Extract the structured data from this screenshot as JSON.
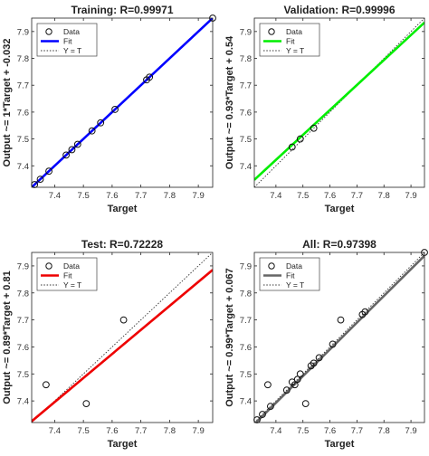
{
  "chart_data": [
    {
      "type": "scatter",
      "title": "Training: R=0.99971",
      "xlabel": "Target",
      "ylabel": "Output ~= 1*Target + -0.032",
      "xlim": [
        7.32,
        7.95
      ],
      "ylim": [
        7.32,
        7.95
      ],
      "xticks": [
        "7.4",
        "7.5",
        "7.6",
        "7.7",
        "7.8",
        "7.9"
      ],
      "yticks": [
        "7.4",
        "7.5",
        "7.6",
        "7.7",
        "7.8",
        "7.9"
      ],
      "fit": {
        "slope": 1.0,
        "intercept": -0.0,
        "color": "#0000ff"
      },
      "series": [
        {
          "name": "Data",
          "x": [
            7.33,
            7.35,
            7.38,
            7.44,
            7.46,
            7.48,
            7.53,
            7.56,
            7.61,
            7.72,
            7.73,
            7.95
          ],
          "y": [
            7.33,
            7.35,
            7.38,
            7.44,
            7.46,
            7.48,
            7.53,
            7.56,
            7.61,
            7.72,
            7.73,
            7.95
          ]
        }
      ],
      "legend": [
        "Data",
        "Fit",
        "Y = T"
      ],
      "legend_position": "top-left",
      "grid": false
    },
    {
      "type": "scatter",
      "title": "Validation: R=0.99996",
      "xlabel": "Target",
      "ylabel": "Output ~= 0.93*Target + 0.54",
      "xlim": [
        7.32,
        7.95
      ],
      "ylim": [
        7.32,
        7.95
      ],
      "xticks": [
        "7.4",
        "7.5",
        "7.6",
        "7.7",
        "7.8",
        "7.9"
      ],
      "yticks": [
        "7.4",
        "7.5",
        "7.6",
        "7.7",
        "7.8",
        "7.9"
      ],
      "fit": {
        "slope": 0.93,
        "intercept": 0.54,
        "color": "#00ee00"
      },
      "series": [
        {
          "name": "Data",
          "x": [
            7.46,
            7.49,
            7.54
          ],
          "y": [
            7.47,
            7.5,
            7.54
          ]
        }
      ],
      "legend": [
        "Data",
        "Fit",
        "Y = T"
      ],
      "legend_position": "top-left",
      "grid": false
    },
    {
      "type": "scatter",
      "title": "Test: R=0.72228",
      "xlabel": "Target",
      "ylabel": "Output ~= 0.89*Target + 0.81",
      "xlim": [
        7.32,
        7.95
      ],
      "ylim": [
        7.32,
        7.95
      ],
      "xticks": [
        "7.4",
        "7.5",
        "7.6",
        "7.7",
        "7.8",
        "7.9"
      ],
      "yticks": [
        "7.4",
        "7.5",
        "7.6",
        "7.7",
        "7.8",
        "7.9"
      ],
      "fit": {
        "slope": 0.89,
        "intercept": 0.81,
        "color": "#ee0000"
      },
      "series": [
        {
          "name": "Data",
          "x": [
            7.37,
            7.51,
            7.64
          ],
          "y": [
            7.46,
            7.39,
            7.7
          ]
        }
      ],
      "legend": [
        "Data",
        "Fit",
        "Y = T"
      ],
      "legend_position": "top-left",
      "grid": false
    },
    {
      "type": "scatter",
      "title": "All: R=0.97398",
      "xlabel": "Target",
      "ylabel": "Output ~= 0.99*Target + 0.067",
      "xlim": [
        7.32,
        7.95
      ],
      "ylim": [
        7.32,
        7.95
      ],
      "xticks": [
        "7.4",
        "7.5",
        "7.6",
        "7.7",
        "7.8",
        "7.9"
      ],
      "yticks": [
        "7.4",
        "7.5",
        "7.6",
        "7.7",
        "7.8",
        "7.9"
      ],
      "fit": {
        "slope": 0.99,
        "intercept": 0.067,
        "color": "#666666"
      },
      "series": [
        {
          "name": "Data",
          "x": [
            7.33,
            7.35,
            7.37,
            7.38,
            7.44,
            7.46,
            7.47,
            7.48,
            7.49,
            7.51,
            7.53,
            7.54,
            7.56,
            7.61,
            7.64,
            7.72,
            7.73,
            7.95
          ],
          "y": [
            7.33,
            7.35,
            7.46,
            7.38,
            7.44,
            7.47,
            7.46,
            7.48,
            7.5,
            7.39,
            7.53,
            7.54,
            7.56,
            7.61,
            7.7,
            7.72,
            7.73,
            7.95
          ]
        }
      ],
      "legend": [
        "Data",
        "Fit",
        "Y = T"
      ],
      "legend_position": "top-left",
      "grid": false
    }
  ]
}
